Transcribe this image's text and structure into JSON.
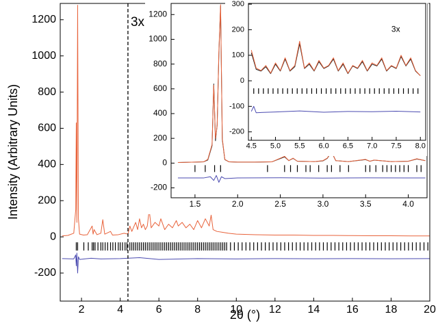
{
  "chart_data": [
    {
      "type": "line",
      "xlabel": "2θ (°)",
      "ylabel": "Intensity (Arbitrary Units)",
      "xlim": [
        0.9,
        20
      ],
      "ylim": [
        -355,
        1290
      ],
      "xticks": [
        2,
        4,
        6,
        8,
        10,
        12,
        14,
        16,
        18,
        20
      ],
      "yticks": [
        -200,
        0,
        200,
        400,
        600,
        800,
        1000,
        1200
      ],
      "series": [
        {
          "color": "#e8623a",
          "x": [
            1.0,
            1.3,
            1.6,
            1.7,
            1.73,
            1.76,
            1.8,
            1.84,
            1.9,
            2.1,
            2.3,
            2.55,
            2.6,
            2.65,
            2.8,
            3.0,
            3.1,
            3.2,
            3.5,
            3.6,
            3.9,
            4.2,
            4.4,
            4.5,
            4.6,
            4.8,
            4.9,
            5.0,
            5.1,
            5.2,
            5.3,
            5.4,
            5.5,
            5.6,
            5.8,
            6.0,
            6.1,
            6.3,
            6.5,
            6.7,
            6.9,
            7.0,
            7.2,
            7.4,
            7.6,
            7.8,
            8.0,
            8.2,
            8.4,
            8.6,
            8.7,
            8.8,
            9.0,
            9.3,
            9.6,
            10,
            11,
            12,
            13,
            14,
            15,
            16,
            17,
            18,
            19,
            20
          ],
          "values": [
            5,
            8,
            20,
            150,
            630,
            80,
            1280,
            100,
            15,
            10,
            12,
            60,
            15,
            40,
            12,
            20,
            95,
            15,
            30,
            10,
            12,
            20,
            15,
            60,
            30,
            80,
            40,
            100,
            50,
            70,
            40,
            60,
            150,
            50,
            80,
            60,
            100,
            40,
            70,
            50,
            90,
            60,
            80,
            50,
            70,
            40,
            90,
            50,
            100,
            60,
            120,
            40,
            30,
            25,
            20,
            15,
            12,
            10,
            10,
            8,
            8,
            7,
            6,
            6,
            5,
            5
          ]
        },
        {
          "color": "#4a4ab0",
          "x": [
            1.0,
            1.6,
            1.7,
            1.73,
            1.76,
            1.8,
            1.84,
            1.9,
            2.5,
            3,
            4,
            5,
            6,
            8,
            10,
            12,
            14,
            16,
            18,
            20
          ],
          "values": [
            -120,
            -122,
            -100,
            -160,
            -90,
            -200,
            -110,
            -125,
            -118,
            -122,
            -120,
            -115,
            -125,
            -120,
            -122,
            -120,
            -121,
            -120,
            -121,
            -120
          ]
        }
      ],
      "reflections": [
        1.73,
        1.8,
        2.12,
        2.35,
        2.55,
        2.62,
        2.7,
        2.85,
        3.0,
        3.1,
        3.22,
        3.35,
        3.5,
        3.62,
        3.75,
        3.9,
        4.0,
        4.12,
        4.25,
        4.35,
        4.5,
        4.6,
        4.7,
        4.8,
        4.9,
        5.0,
        5.1,
        5.2,
        5.3,
        5.4,
        5.5,
        5.6,
        5.7,
        5.8,
        5.9,
        6.0,
        6.1,
        6.2,
        6.3,
        6.4,
        6.5,
        6.6,
        6.7,
        6.8,
        6.9,
        7.0,
        7.1,
        7.2,
        7.3,
        7.4,
        7.5,
        7.6,
        7.7,
        7.8,
        7.9,
        8.0,
        8.1,
        8.2,
        8.3,
        8.4,
        8.5,
        8.6,
        8.7,
        8.8,
        8.9,
        9.0,
        9.1,
        9.2,
        9.3,
        9.4,
        9.5,
        9.7,
        9.9,
        10.1,
        10.3,
        10.5,
        10.7,
        10.9,
        11.1,
        11.3,
        11.5,
        11.7,
        11.9,
        12.1,
        12.3,
        12.5,
        12.7,
        12.9,
        13.1,
        13.3,
        13.5,
        13.7,
        13.9,
        14.1,
        14.3,
        14.5,
        14.7,
        14.9,
        15.1,
        15.3,
        15.5,
        15.7,
        15.9,
        16.1,
        16.3,
        16.5,
        16.7,
        16.9,
        17.1,
        17.3,
        17.5,
        17.7,
        17.9,
        18.1,
        18.3,
        18.5,
        18.7,
        18.9,
        19.1,
        19.3,
        19.5,
        19.7,
        19.9
      ],
      "annotations": [
        {
          "text": "3x",
          "x": 4.4
        }
      ]
    },
    {
      "type": "line",
      "xlim": [
        1.22,
        4.22
      ],
      "ylim": [
        -280,
        1290
      ],
      "xticks": [
        1.5,
        {
          "value": 2,
          "label": "2.0"
        },
        2.5,
        {
          "value": 3,
          "label": "3.0"
        },
        3.5,
        {
          "value": 4,
          "label": "4.0"
        }
      ],
      "yticks": [
        -200,
        0,
        200,
        400,
        600,
        800,
        1000,
        1200
      ],
      "series": [
        {
          "color": "#222222",
          "x": [
            1.3,
            1.5,
            1.6,
            1.65,
            1.7,
            1.72,
            1.74,
            1.76,
            1.78,
            1.8,
            1.82,
            1.85,
            1.9,
            2.0,
            2.2,
            2.4,
            2.55,
            2.6,
            2.65,
            2.7,
            2.9,
            3.0,
            3.05,
            3.1,
            3.15,
            3.3,
            3.5,
            3.55,
            3.6,
            3.8,
            4.0,
            4.1,
            4.2
          ],
          "values": [
            5,
            8,
            10,
            25,
            140,
            640,
            180,
            310,
            880,
            1270,
            190,
            28,
            10,
            8,
            8,
            10,
            50,
            20,
            38,
            15,
            12,
            18,
            38,
            90,
            20,
            12,
            28,
            15,
            24,
            12,
            15,
            33,
            20
          ]
        },
        {
          "color": "#e8623a",
          "x": [
            1.3,
            1.5,
            1.6,
            1.65,
            1.7,
            1.72,
            1.74,
            1.76,
            1.78,
            1.8,
            1.82,
            1.85,
            1.9,
            2.0,
            2.2,
            2.4,
            2.55,
            2.6,
            2.65,
            2.7,
            2.9,
            3.0,
            3.05,
            3.1,
            3.15,
            3.3,
            3.5,
            3.55,
            3.6,
            3.8,
            4.0,
            4.1,
            4.2
          ],
          "values": [
            5,
            8,
            10,
            30,
            150,
            630,
            200,
            300,
            900,
            1280,
            200,
            30,
            10,
            8,
            8,
            10,
            55,
            20,
            40,
            15,
            12,
            20,
            40,
            95,
            20,
            12,
            30,
            15,
            25,
            12,
            15,
            35,
            20
          ]
        },
        {
          "color": "#4a4ab0",
          "x": [
            1.3,
            1.6,
            1.68,
            1.72,
            1.75,
            1.78,
            1.81,
            1.85,
            2.0,
            2.5,
            3.0,
            3.5,
            4.0,
            4.2
          ],
          "values": [
            -120,
            -120,
            -110,
            -140,
            -100,
            -155,
            -110,
            -125,
            -120,
            -118,
            -121,
            -119,
            -120,
            -120
          ]
        }
      ],
      "reflections": [
        1.5,
        1.62,
        1.73,
        1.8,
        2.35,
        2.55,
        2.62,
        2.7,
        2.8,
        2.85,
        2.95,
        3.05,
        3.1,
        3.2,
        3.3,
        3.5,
        3.55,
        3.62,
        3.7,
        3.75,
        3.8,
        3.85,
        3.9,
        3.95,
        4.0,
        4.1,
        4.15
      ]
    },
    {
      "type": "line",
      "xlim": [
        4.44,
        8.11
      ],
      "ylim": [
        -233,
        303
      ],
      "xticks": [
        4.5,
        {
          "value": 5,
          "label": "5.0"
        },
        5.5,
        {
          "value": 6,
          "label": "6.0"
        },
        6.5,
        {
          "value": 7,
          "label": "7.0"
        },
        7.5,
        {
          "value": 8,
          "label": "8.0"
        }
      ],
      "yticks": [
        -200,
        -100,
        0,
        100,
        200,
        300
      ],
      "series": [
        {
          "color": "#222222",
          "x": [
            4.5,
            4.6,
            4.7,
            4.8,
            4.9,
            5.0,
            5.1,
            5.2,
            5.3,
            5.4,
            5.5,
            5.6,
            5.7,
            5.8,
            5.9,
            6.0,
            6.1,
            6.2,
            6.3,
            6.4,
            6.5,
            6.6,
            6.7,
            6.8,
            6.9,
            7.0,
            7.1,
            7.2,
            7.3,
            7.4,
            7.5,
            7.6,
            7.7,
            7.8,
            7.9,
            8.0
          ],
          "values": [
            110,
            45,
            38,
            55,
            28,
            65,
            38,
            85,
            38,
            55,
            145,
            48,
            65,
            38,
            75,
            48,
            58,
            85,
            38,
            65,
            28,
            58,
            48,
            75,
            38,
            65,
            58,
            85,
            38,
            58,
            48,
            95,
            58,
            85,
            38,
            20
          ]
        },
        {
          "color": "#e8623a",
          "x": [
            4.5,
            4.6,
            4.7,
            4.8,
            4.9,
            5.0,
            5.1,
            5.2,
            5.3,
            5.4,
            5.5,
            5.6,
            5.7,
            5.8,
            5.9,
            6.0,
            6.1,
            6.2,
            6.3,
            6.4,
            6.5,
            6.6,
            6.7,
            6.8,
            6.9,
            7.0,
            7.1,
            7.2,
            7.3,
            7.4,
            7.5,
            7.6,
            7.7,
            7.8,
            7.9,
            8.0
          ],
          "values": [
            120,
            50,
            40,
            60,
            30,
            70,
            40,
            90,
            40,
            60,
            155,
            50,
            70,
            40,
            80,
            50,
            60,
            90,
            40,
            70,
            30,
            60,
            50,
            80,
            40,
            70,
            60,
            90,
            40,
            60,
            50,
            100,
            60,
            90,
            40,
            20
          ]
        },
        {
          "color": "#4a4ab0",
          "x": [
            4.5,
            4.55,
            4.6,
            5.0,
            5.5,
            6.0,
            6.5,
            7.0,
            7.5,
            8.0
          ],
          "values": [
            -120,
            -100,
            -125,
            -122,
            -118,
            -123,
            -120,
            -121,
            -119,
            -122
          ]
        }
      ],
      "reflections": [
        4.55,
        4.65,
        4.75,
        4.85,
        4.95,
        5.05,
        5.15,
        5.25,
        5.35,
        5.45,
        5.55,
        5.65,
        5.75,
        5.85,
        5.95,
        6.05,
        6.15,
        6.25,
        6.35,
        6.45,
        6.55,
        6.65,
        6.75,
        6.85,
        6.95,
        7.05,
        7.15,
        7.25,
        7.35,
        7.45,
        7.55,
        7.65,
        7.75,
        7.85,
        7.95
      ],
      "annotations": [
        {
          "text": "3x",
          "x": 7.4,
          "y": 200
        }
      ]
    }
  ]
}
